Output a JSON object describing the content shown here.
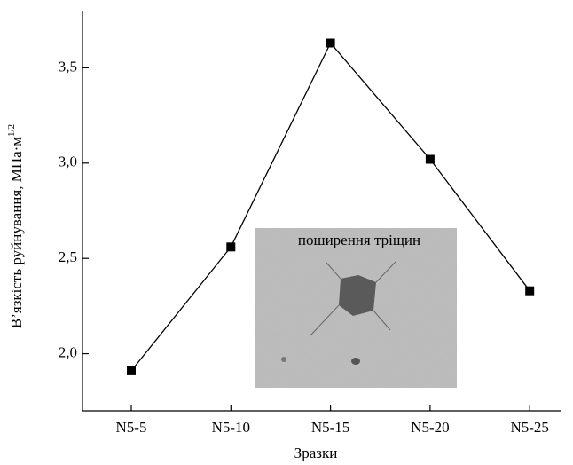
{
  "chart_data": {
    "type": "line",
    "y_label": "В’язкість руйнування, МПа·м",
    "y_label_superscript": "1/2",
    "x_label": "Зразки",
    "annotation": "поширення тріщин",
    "categories": [
      "N5-5",
      "N5-10",
      "N5-15",
      "N5-20",
      "N5-25"
    ],
    "values": [
      1.91,
      2.56,
      3.63,
      3.02,
      2.33
    ],
    "color": "#000000",
    "ylim": [
      1.7,
      3.8
    ],
    "yticks": [
      {
        "value": 2.0,
        "label": "2,0"
      },
      {
        "value": 2.5,
        "label": "2,5"
      },
      {
        "value": 3.0,
        "label": "3,0"
      },
      {
        "value": 3.5,
        "label": "3,5"
      }
    ]
  }
}
